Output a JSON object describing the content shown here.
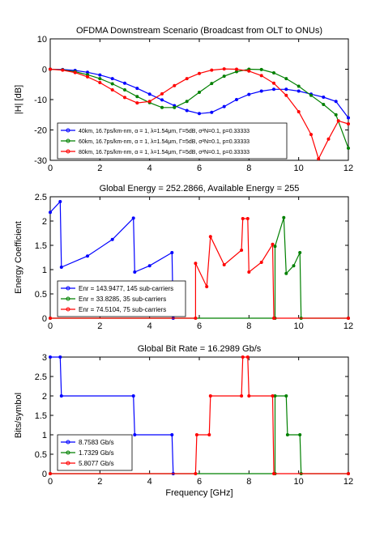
{
  "chart_data": [
    {
      "type": "line",
      "title": "OFDMA Downstream Scenario (Broadcast from OLT to ONUs)",
      "xlabel": "",
      "ylabel": "|H| [dB]",
      "xlim": [
        0,
        12
      ],
      "ylim": [
        -30,
        10
      ],
      "xticks": [
        "0",
        "2",
        "4",
        "6",
        "8",
        "10",
        "12"
      ],
      "yticks": [
        "-30",
        "-20",
        "-10",
        "0",
        "10"
      ],
      "grid": false,
      "legend_position": "bottom-left",
      "series": [
        {
          "name": "40km, 16.7ps/km-nm, α = 1, λ=1.54μm, Γ=5dB, σ²N=0.1, p=0.33333",
          "color": "#0000ff",
          "points": [
            [
              0,
              0
            ],
            [
              0.5,
              -0.1
            ],
            [
              1,
              -0.4
            ],
            [
              1.5,
              -1
            ],
            [
              2,
              -1.9
            ],
            [
              2.5,
              -3.1
            ],
            [
              3,
              -4.6
            ],
            [
              3.5,
              -6.3
            ],
            [
              4,
              -8.2
            ],
            [
              4.5,
              -10.1
            ],
            [
              5,
              -12
            ],
            [
              5.5,
              -13.6
            ],
            [
              6,
              -14.6
            ],
            [
              6.5,
              -14.2
            ],
            [
              7,
              -12.3
            ],
            [
              7.5,
              -10
            ],
            [
              8,
              -8.3
            ],
            [
              8.5,
              -7.2
            ],
            [
              9,
              -6.6
            ],
            [
              9.5,
              -6.6
            ],
            [
              10,
              -7.2
            ],
            [
              10.5,
              -8.2
            ],
            [
              11,
              -9.2
            ],
            [
              11.5,
              -10.6
            ],
            [
              12,
              -16
            ]
          ]
        },
        {
          "name": "60km, 16.7ps/km-nm, α = 1, λ=1.54μm, Γ=5dB, σ²N=0.1, p=0.33333",
          "color": "#008000",
          "points": [
            [
              0,
              0
            ],
            [
              0.5,
              -0.2
            ],
            [
              1,
              -0.8
            ],
            [
              1.5,
              -1.8
            ],
            [
              2,
              -3.1
            ],
            [
              2.5,
              -4.8
            ],
            [
              3,
              -6.8
            ],
            [
              3.5,
              -9
            ],
            [
              4,
              -11
            ],
            [
              4.5,
              -12.6
            ],
            [
              5,
              -12.6
            ],
            [
              5.5,
              -10.6
            ],
            [
              6,
              -7.6
            ],
            [
              6.5,
              -4.7
            ],
            [
              7,
              -2.3
            ],
            [
              7.5,
              -0.8
            ],
            [
              8,
              0
            ],
            [
              8.5,
              -0.1
            ],
            [
              9,
              -1.2
            ],
            [
              9.5,
              -3.1
            ],
            [
              10,
              -5.6
            ],
            [
              10.5,
              -8.6
            ],
            [
              11,
              -11.6
            ],
            [
              11.5,
              -15
            ],
            [
              12,
              -26
            ]
          ]
        },
        {
          "name": "80km, 16.7ps/km-nm, α = 1, λ=1.54μm, Γ=5dB, σ²N=0.1, p=0.33333",
          "color": "#ff0000",
          "points": [
            [
              0,
              0
            ],
            [
              0.5,
              -0.3
            ],
            [
              1,
              -1.1
            ],
            [
              1.5,
              -2.5
            ],
            [
              2,
              -4.4
            ],
            [
              2.5,
              -6.8
            ],
            [
              3,
              -9.3
            ],
            [
              3.5,
              -11.1
            ],
            [
              4,
              -10.6
            ],
            [
              4.5,
              -8.1
            ],
            [
              5,
              -5.4
            ],
            [
              5.5,
              -3.1
            ],
            [
              6,
              -1.4
            ],
            [
              6.5,
              -0.3
            ],
            [
              7,
              0.1
            ],
            [
              7.5,
              0
            ],
            [
              8,
              -0.6
            ],
            [
              8.5,
              -2.1
            ],
            [
              9,
              -4.6
            ],
            [
              9.5,
              -8.6
            ],
            [
              10,
              -14
            ],
            [
              10.5,
              -21.5
            ],
            [
              10.8,
              -29.5
            ],
            [
              11.2,
              -23
            ],
            [
              11.6,
              -17
            ],
            [
              12,
              -18
            ]
          ]
        }
      ]
    },
    {
      "type": "line",
      "title": "Global Energy = 252.2866, Available Energy = 255",
      "xlabel": "",
      "ylabel": "Energy Coefficient",
      "xlim": [
        0,
        12
      ],
      "ylim": [
        0,
        2.5
      ],
      "xticks": [
        "0",
        "2",
        "4",
        "6",
        "8",
        "10",
        "12"
      ],
      "yticks": [
        "0",
        "0.5",
        "1",
        "1.5",
        "2",
        "2.5"
      ],
      "grid": false,
      "legend_position": "bottom-left",
      "series": [
        {
          "name": "Enr = 143.9477, 145 sub-carriers",
          "color": "#0000ff",
          "points": [
            [
              0,
              2.18
            ],
            [
              0.4,
              2.4
            ],
            [
              0.45,
              1.05
            ],
            [
              1.5,
              1.28
            ],
            [
              2.5,
              1.62
            ],
            [
              3.35,
              2.06
            ],
            [
              3.4,
              0.95
            ],
            [
              4,
              1.08
            ],
            [
              4.9,
              1.35
            ],
            [
              4.95,
              0
            ]
          ]
        },
        {
          "name": "Enr = 33.8285, 35 sub-carriers",
          "color": "#008000",
          "points": [
            [
              0,
              0
            ],
            [
              9.05,
              0
            ],
            [
              9.05,
              1.48
            ],
            [
              9.4,
              2.07
            ],
            [
              9.5,
              0.92
            ],
            [
              9.8,
              1.08
            ],
            [
              10.05,
              1.35
            ],
            [
              10.1,
              0
            ],
            [
              12,
              0
            ]
          ]
        },
        {
          "name": "Enr = 74.5104, 75 sub-carriers",
          "color": "#ff0000",
          "points": [
            [
              0,
              0
            ],
            [
              5.85,
              0
            ],
            [
              5.85,
              1.13
            ],
            [
              6.3,
              0.65
            ],
            [
              6.45,
              1.68
            ],
            [
              7,
              1.1
            ],
            [
              7.7,
              1.4
            ],
            [
              7.75,
              2.05
            ],
            [
              7.95,
              2.05
            ],
            [
              8,
              0.95
            ],
            [
              8.5,
              1.15
            ],
            [
              8.95,
              1.52
            ],
            [
              9,
              0
            ],
            [
              12,
              0
            ]
          ]
        }
      ]
    },
    {
      "type": "line",
      "title": "Global Bit Rate = 16.2989 Gb/s",
      "xlabel": "Frequency [GHz]",
      "ylabel": "Bits/symbol",
      "xlim": [
        0,
        12
      ],
      "ylim": [
        0,
        3
      ],
      "xticks": [
        "0",
        "2",
        "4",
        "6",
        "8",
        "10",
        "12"
      ],
      "yticks": [
        "0",
        "0.5",
        "1",
        "1.5",
        "2",
        "2.5",
        "3"
      ],
      "grid": false,
      "legend_position": "bottom-left",
      "series": [
        {
          "name": "8.7583 Gb/s",
          "color": "#0000ff",
          "points": [
            [
              0,
              3
            ],
            [
              0.4,
              3
            ],
            [
              0.45,
              2
            ],
            [
              3.35,
              2
            ],
            [
              3.4,
              1
            ],
            [
              4.9,
              1
            ],
            [
              4.95,
              0
            ]
          ]
        },
        {
          "name": "1.7329 Gb/s",
          "color": "#008000",
          "points": [
            [
              0,
              0
            ],
            [
              9.05,
              0
            ],
            [
              9.05,
              2
            ],
            [
              9.5,
              2
            ],
            [
              9.55,
              1
            ],
            [
              10.05,
              1
            ],
            [
              10.1,
              0
            ],
            [
              12,
              0
            ]
          ]
        },
        {
          "name": "5.8077 Gb/s",
          "color": "#ff0000",
          "points": [
            [
              0,
              0
            ],
            [
              5.85,
              0
            ],
            [
              5.9,
              1
            ],
            [
              6.4,
              1
            ],
            [
              6.45,
              2
            ],
            [
              7.7,
              2
            ],
            [
              7.75,
              3
            ],
            [
              7.95,
              3
            ],
            [
              8,
              2
            ],
            [
              8.95,
              2
            ],
            [
              9,
              0
            ],
            [
              12,
              0
            ]
          ]
        }
      ]
    }
  ]
}
